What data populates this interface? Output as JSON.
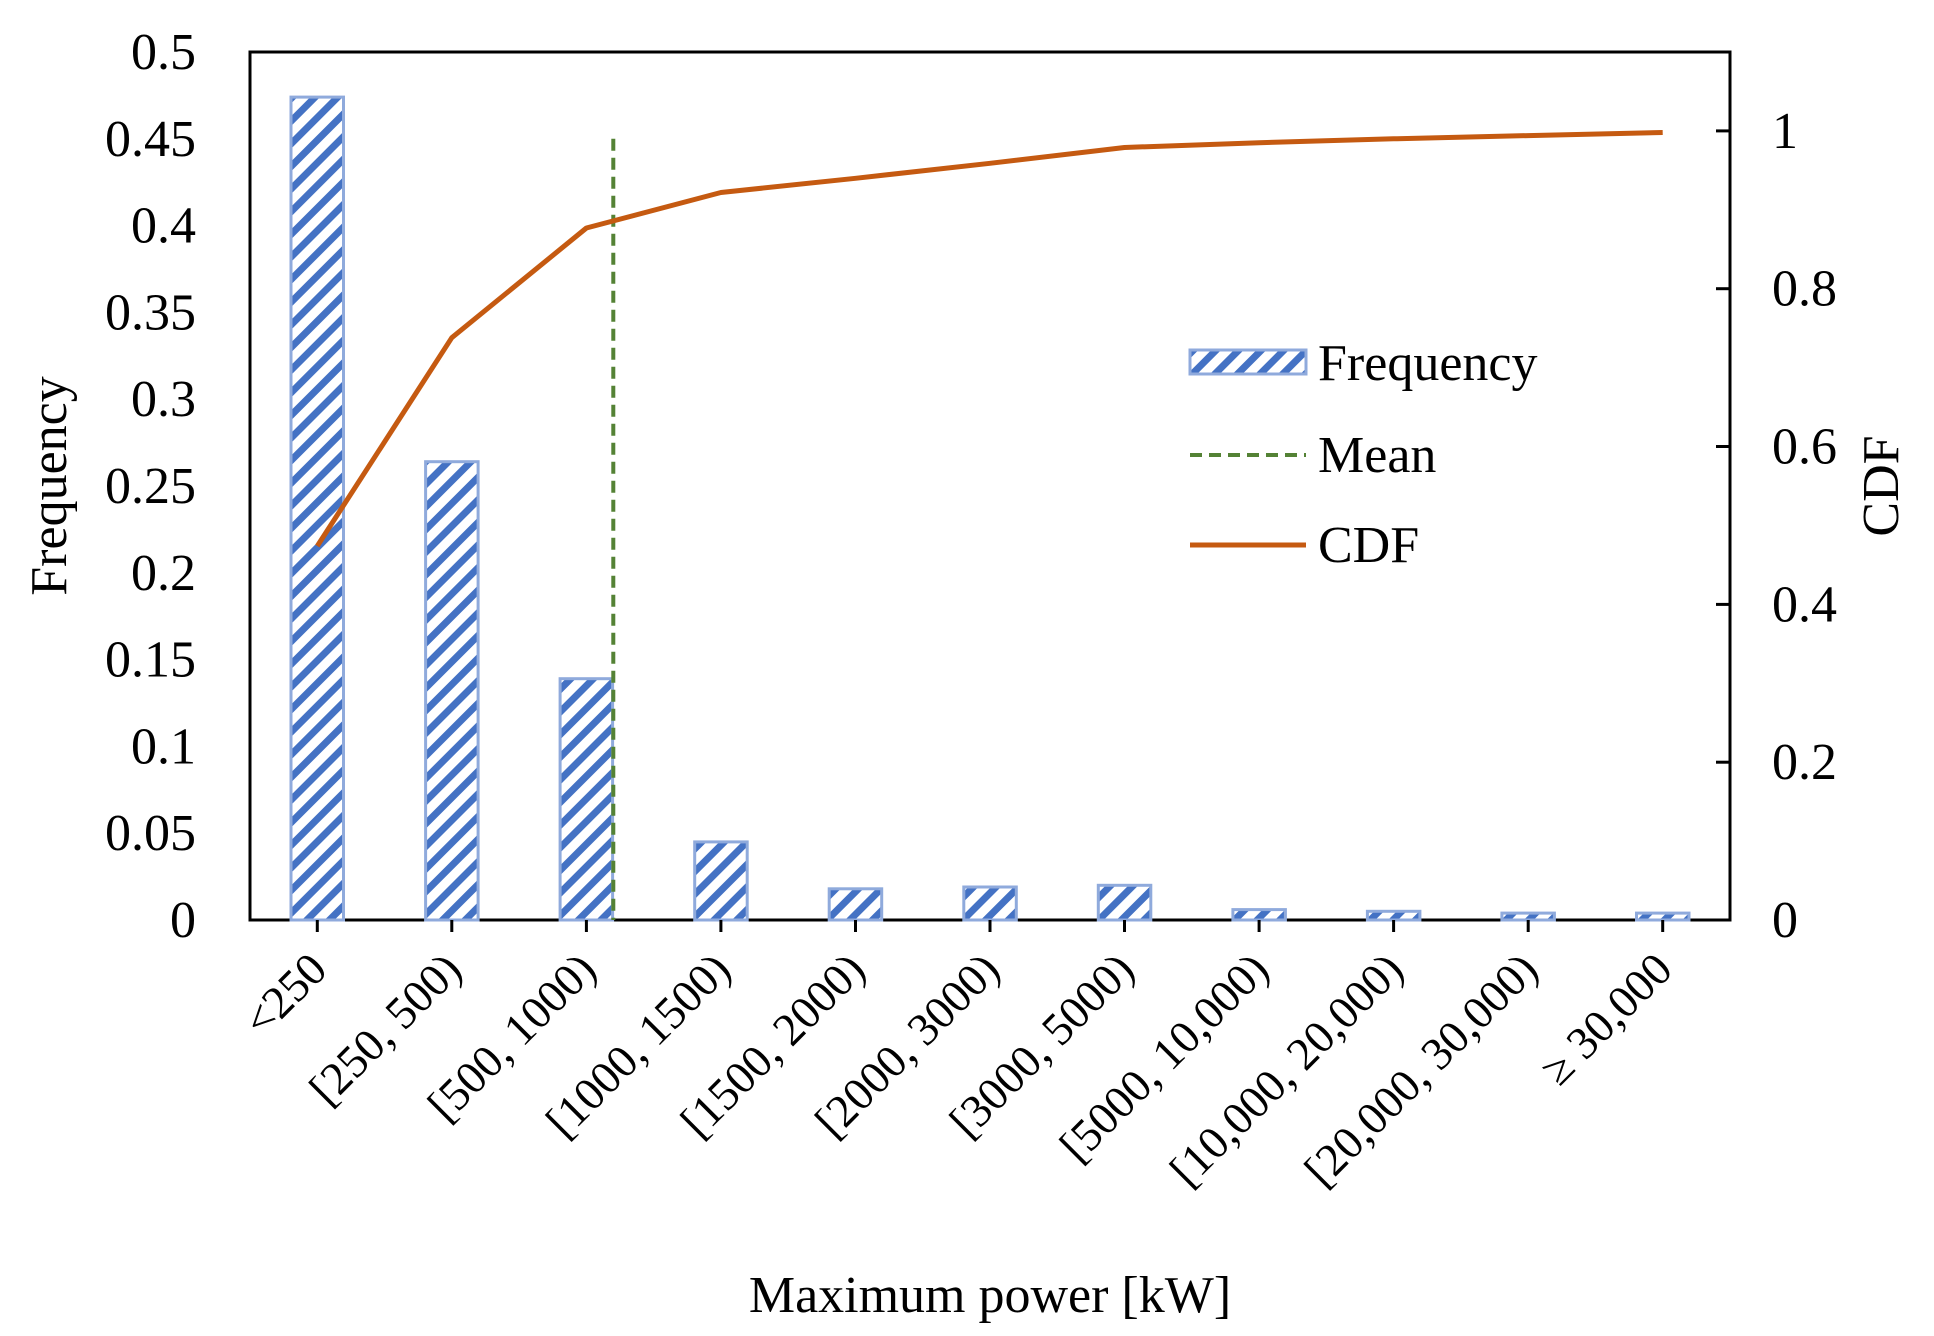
{
  "chart_data": {
    "type": "bar",
    "title": "",
    "xlabel": "Maximum power [kW]",
    "ylabel": "Frequency",
    "y2label": "CDF",
    "ylim": [
      0,
      0.5
    ],
    "y2lim": [
      0,
      1.1
    ],
    "yticks": [
      "0",
      "0.05",
      "0.1",
      "0.15",
      "0.2",
      "0.25",
      "0.3",
      "0.35",
      "0.4",
      "0.45",
      "0.5"
    ],
    "y2ticks": [
      "0",
      "0.2",
      "0.4",
      "0.6",
      "0.8",
      "1"
    ],
    "categories": [
      "<250",
      "[250, 500)",
      "[500, 1000)",
      "[1000, 1500)",
      "[1500, 2000)",
      "[2000, 3000)",
      "[3000, 5000)",
      "[5000, 10,000)",
      "[10,000, 20,000)",
      "[20,000, 30,000)",
      "≥ 30,000"
    ],
    "series": [
      {
        "name": "Frequency",
        "type": "bar",
        "axis": "left",
        "pattern": "diagonal-hatch",
        "color": "#4472C4",
        "values": [
          0.474,
          0.264,
          0.139,
          0.045,
          0.018,
          0.019,
          0.02,
          0.006,
          0.005,
          0.004,
          0.004
        ]
      },
      {
        "name": "Mean",
        "type": "vline",
        "axis": "left",
        "style": "dashed",
        "color": "#548235",
        "position_category_index": 2.2,
        "ymax": 0.45
      },
      {
        "name": "CDF",
        "type": "line",
        "axis": "right",
        "color": "#C55A11",
        "values": [
          0.474,
          0.738,
          0.877,
          0.922,
          0.94,
          0.959,
          0.979,
          0.985,
          0.99,
          0.994,
          0.998
        ]
      }
    ],
    "legend": {
      "position": "center-right",
      "entries": [
        "Frequency",
        "Mean",
        "CDF"
      ]
    },
    "grid": false
  }
}
